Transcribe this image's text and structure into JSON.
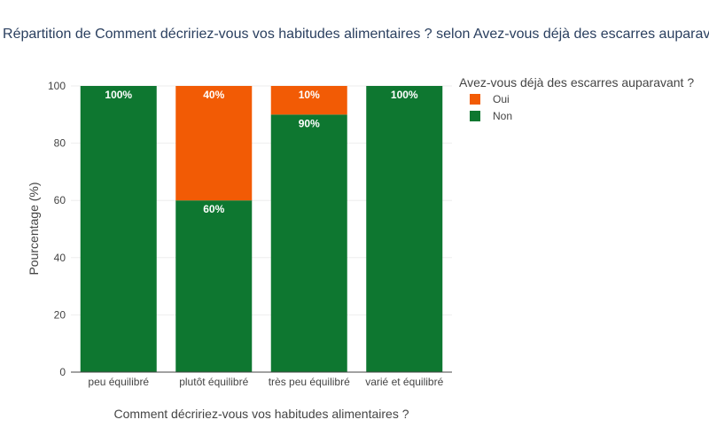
{
  "chart_data": {
    "type": "bar",
    "stacked": true,
    "title": "Répartition de Comment décririez-vous vos habitudes alimentaires ? selon Avez-vous déjà des escarres auparavant ?",
    "xlabel": "Comment décririez-vous vos habitudes alimentaires ?",
    "ylabel": "Pourcentage (%)",
    "ylim": [
      0,
      100
    ],
    "yticks": [
      0,
      20,
      40,
      60,
      80,
      100
    ],
    "grid": true,
    "legend": {
      "title": "Avez-vous déjà des escarres auparavant ?",
      "placement": "right",
      "entries": [
        "Oui",
        "Non"
      ]
    },
    "categories": [
      "peu équilibré",
      "plutôt équilibré",
      "très peu équilibré",
      "varié et équilibré"
    ],
    "series": [
      {
        "name": "Non",
        "color": "#0e7730",
        "values": [
          100,
          60,
          90,
          100
        ],
        "labels": [
          "100%",
          "60%",
          "90%",
          "100%"
        ]
      },
      {
        "name": "Oui",
        "color": "#f25b05",
        "values": [
          0,
          40,
          10,
          0
        ],
        "labels": [
          "",
          "40%",
          "10%",
          ""
        ]
      }
    ]
  }
}
